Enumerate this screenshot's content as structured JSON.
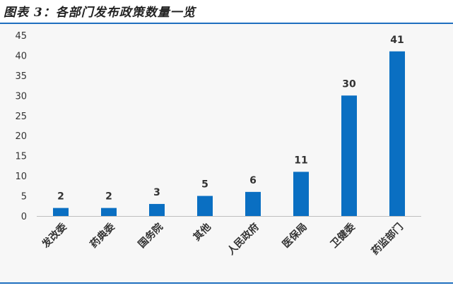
{
  "figure": {
    "title": "图表 3：各部门发布政策数量一览"
  },
  "colors": {
    "bar": "#0a6fc2",
    "axis_text": "#333333",
    "accent_rule": "#1f6fbf"
  },
  "chart_data": {
    "type": "bar",
    "categories": [
      "发改委",
      "药典委",
      "国务院",
      "其他",
      "人民政府",
      "医保局",
      "卫健委",
      "药监部门"
    ],
    "values": [
      2,
      2,
      3,
      5,
      6,
      11,
      30,
      41
    ],
    "yticks": [
      0,
      5,
      10,
      15,
      20,
      25,
      30,
      35,
      40,
      45
    ],
    "ylim": [
      0,
      45
    ],
    "grid": false,
    "legend": "none",
    "title": "",
    "xlabel": "",
    "ylabel": ""
  }
}
